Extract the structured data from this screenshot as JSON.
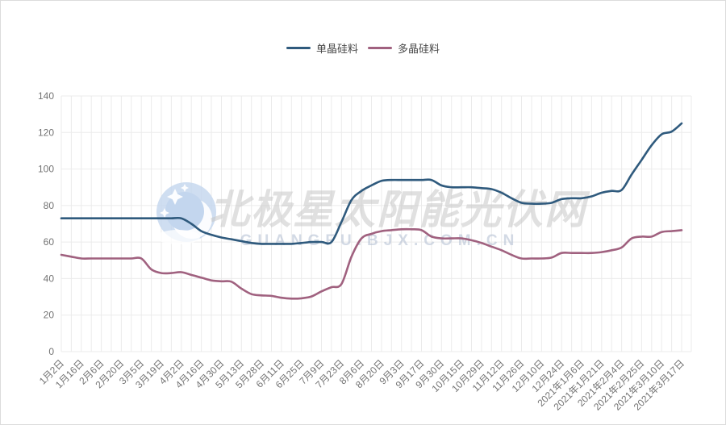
{
  "page": {
    "background": "#ffffff",
    "border_color": "#dcdcdc"
  },
  "watermark": {
    "logo_icon": "moon-stars-icon",
    "title": "北极星太阳能光伏网",
    "subtitle": "GUANGFU.BJX.COM.CN",
    "title_color": "#c7c7c7",
    "subtitle_color": "#b7c2d4",
    "logo_color": "#c3d6ee"
  },
  "chart_data": {
    "type": "line",
    "title": "",
    "xlabel": "",
    "ylabel": "",
    "ylim": [
      0,
      140
    ],
    "y_ticks": [
      0,
      20,
      40,
      60,
      80,
      100,
      120,
      140
    ],
    "grid": true,
    "grid_color": "#ebebeb",
    "axis_text_color": "#737373",
    "legend_position": "top-center",
    "x_labels_every_n_points": 2,
    "x_tick_labels": [
      "1月2日",
      "1月16日",
      "2月6日",
      "2月20日",
      "3月5日",
      "3月19日",
      "4月2日",
      "4月16日",
      "4月30日",
      "5月13日",
      "5月28日",
      "6月11日",
      "6月25日",
      "7月9日",
      "7月23日",
      "8月6日",
      "8月20日",
      "9月3日",
      "9月17日",
      "9月30日",
      "10月15日",
      "10月29日",
      "11月12日",
      "11月26日",
      "12月10日",
      "12月24日",
      "2021年1月6日",
      "2021年1月21日",
      "2021年2月4日",
      "2021年2月25日",
      "2021年3月10日",
      "2021年3月17日"
    ],
    "series": [
      {
        "id": "mono",
        "name": "单晶硅料",
        "color": "#2f5a7d",
        "values": [
          73,
          73,
          73,
          73,
          73,
          73,
          73,
          73,
          73,
          73,
          73,
          73,
          73,
          70,
          66,
          64,
          62.5,
          61.5,
          60.5,
          59.5,
          59,
          59,
          59,
          59,
          59.5,
          60,
          60,
          60,
          71,
          83,
          88,
          91,
          93.5,
          94,
          94,
          94,
          94,
          94,
          91,
          90,
          90,
          90,
          89.5,
          89,
          87,
          84,
          81.5,
          81,
          81,
          81.5,
          83.5,
          84,
          84,
          85,
          87,
          88,
          88.5,
          97,
          105,
          113,
          119,
          120.5,
          125
        ]
      },
      {
        "id": "poly",
        "name": "多晶硅料",
        "color": "#a0617f",
        "values": [
          53,
          52,
          51,
          51,
          51,
          51,
          51,
          51,
          51,
          45,
          43,
          43,
          43.5,
          42,
          40.5,
          39,
          38.5,
          38.3,
          34.5,
          31.5,
          30.8,
          30.5,
          29.5,
          29,
          29.2,
          30.2,
          33,
          35.3,
          37,
          52,
          62,
          64.5,
          66,
          66.5,
          67,
          67,
          66.5,
          63,
          62,
          62,
          62,
          61,
          59.5,
          57.5,
          55.5,
          53,
          51,
          51,
          51,
          51.5,
          54,
          54,
          54,
          54,
          54.5,
          55.5,
          57,
          62,
          63,
          63,
          65.5,
          66,
          66.5
        ]
      }
    ]
  }
}
